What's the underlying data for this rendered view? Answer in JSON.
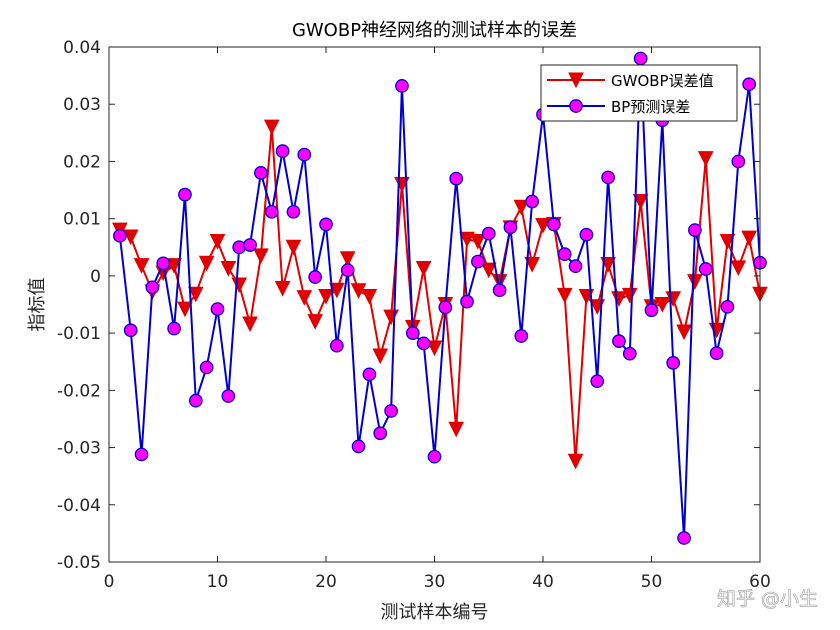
{
  "chart_data": {
    "type": "line",
    "title": "GWOBP神经网络的测试样本的误差",
    "xlabel": "测试样本编号",
    "ylabel": "指标值",
    "xlim": [
      0,
      60
    ],
    "ylim": [
      -0.05,
      0.04
    ],
    "xticks": [
      0,
      10,
      20,
      30,
      40,
      50,
      60
    ],
    "yticks": [
      -0.05,
      -0.04,
      -0.03,
      -0.02,
      -0.01,
      0,
      0.01,
      0.02,
      0.03,
      0.04
    ],
    "ytick_labels": [
      "-0.05",
      "-0.04",
      "-0.03",
      "-0.02",
      "-0.01",
      "0",
      "0.01",
      "0.02",
      "0.03",
      "0.04"
    ],
    "grid": false,
    "legend_position": "top-right",
    "x": [
      1,
      2,
      3,
      4,
      5,
      6,
      7,
      8,
      9,
      10,
      11,
      12,
      13,
      14,
      15,
      16,
      17,
      18,
      19,
      20,
      21,
      22,
      23,
      24,
      25,
      26,
      27,
      28,
      29,
      30,
      31,
      32,
      33,
      34,
      35,
      36,
      37,
      38,
      39,
      40,
      41,
      42,
      43,
      44,
      45,
      46,
      47,
      48,
      49,
      50,
      51,
      52,
      53,
      54,
      55,
      56,
      57,
      58,
      59,
      60
    ],
    "series": [
      {
        "name": "GWOBP误差值",
        "color": "#e00000",
        "marker": "triangle-down",
        "values": [
          0.008,
          0.0068,
          0.0018,
          -0.0028,
          0.0005,
          0.0018,
          -0.0058,
          -0.0032,
          0.0022,
          0.006,
          0.0013,
          -0.0016,
          -0.0084,
          0.0035,
          0.026,
          -0.0022,
          0.005,
          -0.0038,
          -0.008,
          -0.0036,
          -0.0025,
          0.003,
          -0.0026,
          -0.0036,
          -0.014,
          -0.0072,
          0.016,
          -0.009,
          0.0013,
          -0.0126,
          -0.005,
          -0.0268,
          0.0064,
          0.006,
          0.001,
          -0.001,
          0.0084,
          0.012,
          0.002,
          0.0088,
          0.009,
          -0.0034,
          -0.0324,
          -0.0036,
          -0.0054,
          0.002,
          -0.004,
          -0.0034,
          0.013,
          -0.0054,
          -0.005,
          -0.004,
          -0.0098,
          -0.001,
          0.0205,
          -0.0095,
          0.006,
          0.0014,
          0.0066,
          -0.0032
        ]
      },
      {
        "name": "BP预测误差",
        "color": "#0000cc",
        "marker": "circle",
        "marker_fill": "#ff00ff",
        "values": [
          0.007,
          -0.0095,
          -0.0312,
          -0.002,
          0.0022,
          -0.0092,
          0.0142,
          -0.0218,
          -0.016,
          -0.0058,
          -0.021,
          0.005,
          0.0054,
          0.018,
          0.0112,
          0.0218,
          0.0112,
          0.0212,
          -0.0002,
          0.009,
          -0.0122,
          0.001,
          -0.0298,
          -0.0172,
          -0.0275,
          -0.0236,
          0.0332,
          -0.01,
          -0.0118,
          -0.0316,
          -0.0055,
          0.017,
          -0.0045,
          0.0025,
          0.0074,
          -0.0025,
          0.0085,
          -0.0105,
          0.013,
          0.0282,
          0.009,
          0.0038,
          0.0017,
          0.0072,
          -0.0184,
          0.0172,
          -0.0114,
          -0.0136,
          0.038,
          -0.006,
          0.0272,
          -0.0152,
          -0.0458,
          0.008,
          0.0012,
          -0.0135,
          -0.0054,
          0.02,
          0.0335,
          0.0023
        ]
      }
    ]
  },
  "watermark": "知乎 @小生"
}
